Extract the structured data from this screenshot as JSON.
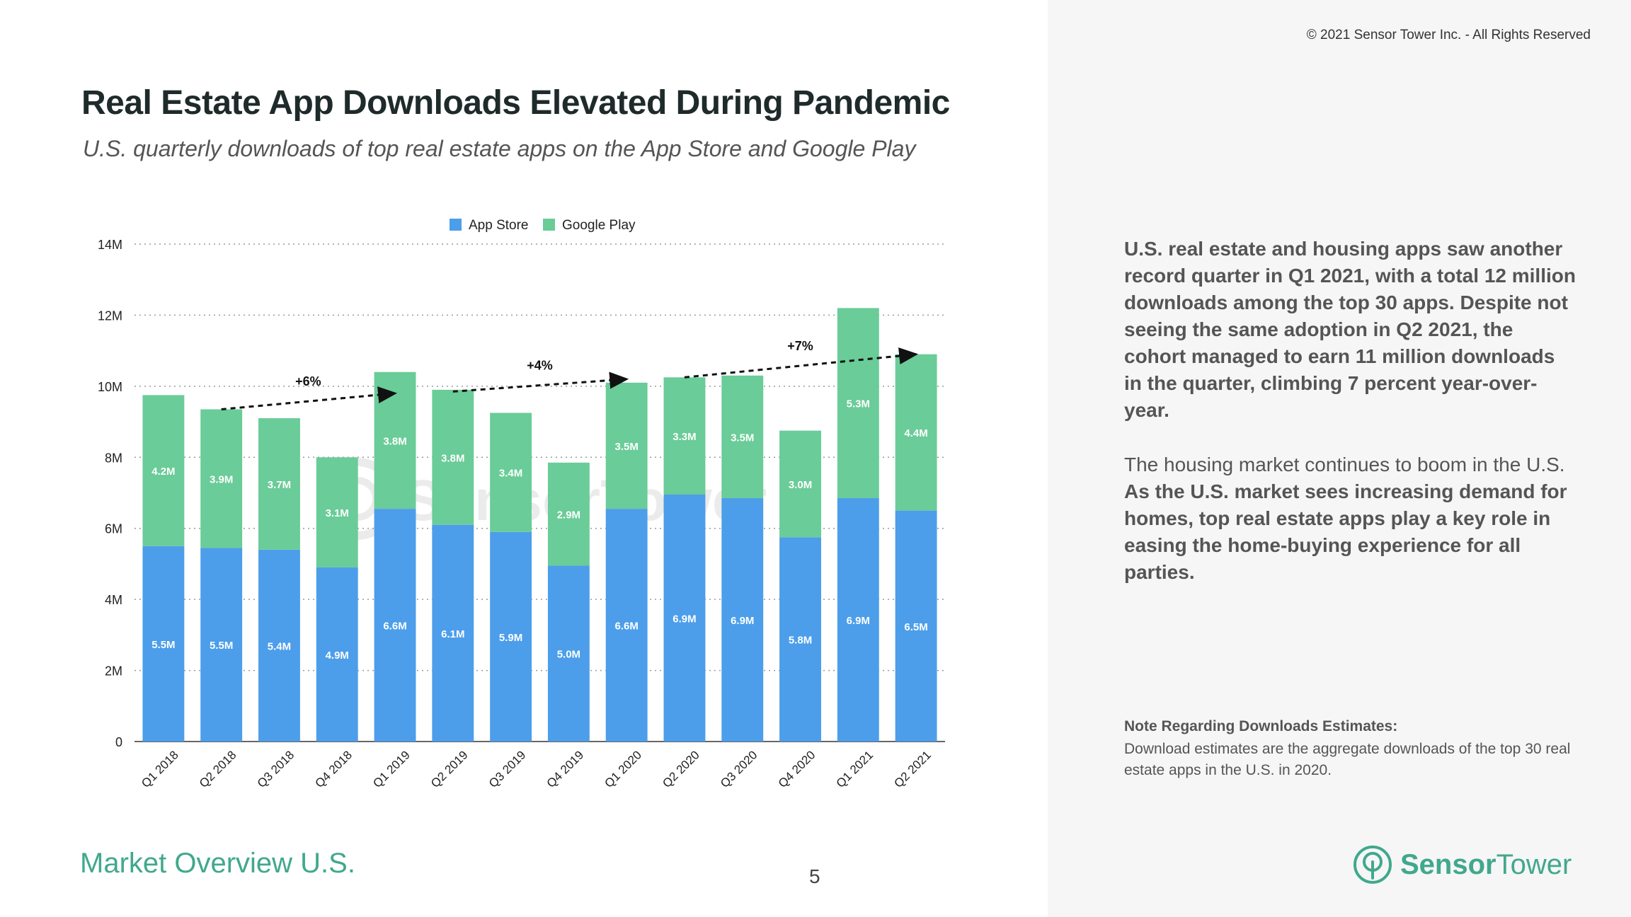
{
  "header": {
    "copyright": "© 2021 Sensor Tower Inc. - All Rights Reserved",
    "title": "Real Estate App Downloads Elevated During Pandemic",
    "subtitle": "U.S. quarterly downloads of top real estate apps on the App Store and Google Play"
  },
  "colors": {
    "app_store": "#4c9eea",
    "google_play": "#6acc98",
    "accent": "#41a88c"
  },
  "chart_data": {
    "type": "bar",
    "stacked": true,
    "title": "",
    "xlabel": "",
    "ylabel": "",
    "ylim": [
      0,
      14
    ],
    "unit": "M",
    "y_ticks": [
      "0",
      "2M",
      "4M",
      "6M",
      "8M",
      "10M",
      "12M",
      "14M"
    ],
    "legend_position": "top-center",
    "categories": [
      "Q1 2018",
      "Q2 2018",
      "Q3 2018",
      "Q4 2018",
      "Q1 2019",
      "Q2 2019",
      "Q3 2019",
      "Q4 2019",
      "Q1 2020",
      "Q2 2020",
      "Q3 2020",
      "Q4 2020",
      "Q1 2021",
      "Q2 2021"
    ],
    "series": [
      {
        "name": "App Store",
        "values": [
          5.5,
          5.45,
          5.4,
          4.9,
          6.55,
          6.1,
          5.9,
          4.95,
          6.55,
          6.95,
          6.85,
          5.75,
          6.85,
          6.5
        ],
        "labels": [
          "5.5M",
          "5.5M",
          "5.4M",
          "4.9M",
          "6.6M",
          "6.1M",
          "5.9M",
          "5.0M",
          "6.6M",
          "6.9M",
          "6.9M",
          "5.8M",
          "6.9M",
          "6.5M"
        ]
      },
      {
        "name": "Google Play",
        "values": [
          4.25,
          3.9,
          3.7,
          3.1,
          3.85,
          3.8,
          3.35,
          2.9,
          3.55,
          3.3,
          3.45,
          3.0,
          5.35,
          4.4
        ],
        "labels": [
          "4.2M",
          "3.9M",
          "3.7M",
          "3.1M",
          "3.8M",
          "3.8M",
          "3.4M",
          "2.9M",
          "3.5M",
          "3.3M",
          "3.5M",
          "3.0M",
          "5.3M",
          "4.4M"
        ]
      }
    ],
    "annotations": [
      {
        "text": "+6%",
        "from_index": 1,
        "to_index": 4,
        "from_value": 9.35,
        "to_value": 9.8
      },
      {
        "text": "+4%",
        "from_index": 5,
        "to_index": 8,
        "from_value": 9.85,
        "to_value": 10.2
      },
      {
        "text": "+7%",
        "from_index": 9,
        "to_index": 13,
        "from_value": 10.25,
        "to_value": 10.9
      }
    ]
  },
  "sidebar": {
    "para1": "U.S. real estate and housing apps saw another record quarter in Q1 2021, with a total 12 million downloads among the top 30 apps. Despite not seeing the same adoption in Q2 2021, the cohort managed to earn 11 million downloads in the quarter, climbing 7 percent year-over-year.",
    "para2_lead": "The housing market continues to boom in the U.S.",
    "para2_strong": "As the U.S. market sees increasing demand for homes, top real estate apps play a key role in easing the home-buying experience for all parties.",
    "note_title": "Note Regarding Downloads Estimates:",
    "note_body": "Download estimates are the aggregate downloads of the top 30 real estate apps in the U.S. in 2020."
  },
  "footer": {
    "section": "Market Overview U.S.",
    "page": "5",
    "brand_bold": "Sensor",
    "brand_regular": "Tower"
  },
  "watermark": "SensorTower"
}
